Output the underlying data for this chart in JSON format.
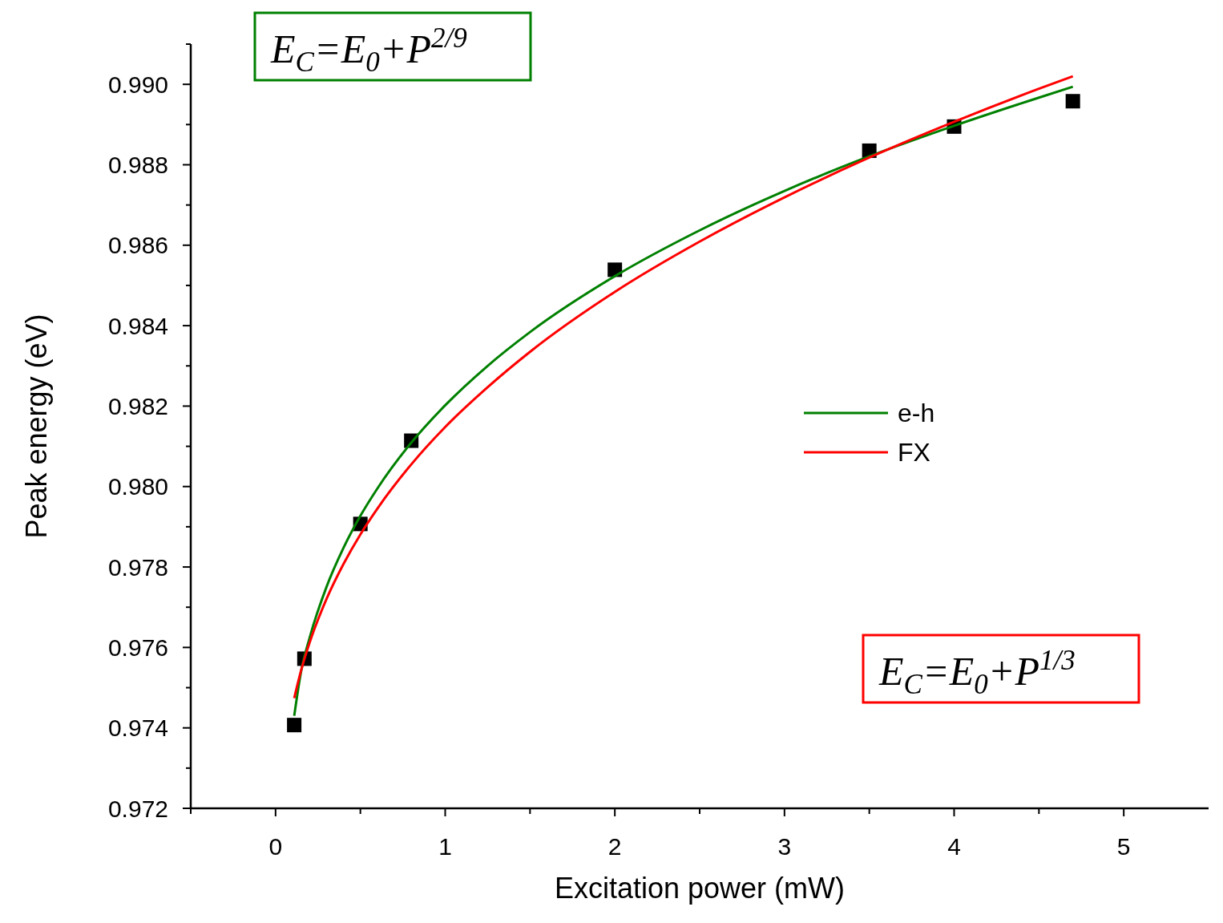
{
  "chart_data": {
    "type": "scatter",
    "xlabel": "Excitation power (mW)",
    "ylabel": "Peak energy (eV)",
    "xlim": [
      -0.5,
      5.5
    ],
    "ylim": [
      0.972,
      0.991
    ],
    "xticks": [
      {
        "value": -0.5,
        "label": null
      },
      0,
      {
        "value": 0.5,
        "label": null
      },
      1,
      {
        "value": 1.5,
        "label": null
      },
      2,
      {
        "value": 2.5,
        "label": null
      },
      3,
      {
        "value": 3.5,
        "label": null
      },
      4,
      {
        "value": 4.5,
        "label": null
      },
      5
    ],
    "yticks": [
      {
        "value": 0.972,
        "label": "0.972"
      },
      {
        "value": 0.973,
        "label": null
      },
      {
        "value": 0.974,
        "label": "0.974"
      },
      {
        "value": 0.975,
        "label": null
      },
      {
        "value": 0.976,
        "label": "0.976"
      },
      {
        "value": 0.977,
        "label": null
      },
      {
        "value": 0.978,
        "label": "0.978"
      },
      {
        "value": 0.979,
        "label": null
      },
      {
        "value": 0.98,
        "label": "0.980"
      },
      {
        "value": 0.981,
        "label": null
      },
      {
        "value": 0.982,
        "label": "0.982"
      },
      {
        "value": 0.983,
        "label": null
      },
      {
        "value": 0.984,
        "label": "0.984"
      },
      {
        "value": 0.985,
        "label": null
      },
      {
        "value": 0.986,
        "label": "0.986"
      },
      {
        "value": 0.987,
        "label": null
      },
      {
        "value": 0.988,
        "label": "0.988"
      },
      {
        "value": 0.989,
        "label": null
      },
      {
        "value": 0.99,
        "label": "0.990"
      },
      {
        "value": 0.991,
        "label": null
      }
    ],
    "grid": false,
    "legend": "right",
    "marker": "square",
    "series": [
      {
        "color": "#000000",
        "x": [
          0.11,
          0.17,
          0.5,
          0.8,
          2,
          3.5,
          4,
          4.7
        ],
        "values": [
          0.97407,
          0.97572,
          0.97907,
          0.98114,
          0.98539,
          0.98835,
          0.98895,
          0.98958
        ]
      },
      {
        "type": "line",
        "name": "e-h",
        "color": "#008000",
        "marker": "none",
        "x": [
          0.11,
          0.15,
          0.2,
          0.3,
          0.4,
          0.5,
          0.6,
          0.8,
          1,
          1.25,
          1.5,
          2,
          2.5,
          3,
          3.5,
          4,
          4.5,
          4.7
        ],
        "values": [
          0.9743,
          0.97539,
          0.97623,
          0.9775,
          0.97847,
          0.97927,
          0.97995,
          0.98109,
          0.98202,
          0.983,
          0.98384,
          0.98523,
          0.98637,
          0.98735,
          0.98821,
          0.98897,
          0.98967,
          0.98994
        ]
      },
      {
        "type": "line",
        "name": "FX",
        "color": "#ff0000",
        "marker": "none",
        "x": [
          0.11,
          0.15,
          0.2,
          0.3,
          0.4,
          0.5,
          0.6,
          0.8,
          1,
          1.25,
          1.5,
          2,
          2.5,
          3,
          3.5,
          4,
          4.5,
          4.7
        ],
        "values": [
          0.97474,
          0.97542,
          0.97611,
          0.9772,
          0.97807,
          0.97881,
          0.97945,
          0.98055,
          0.98148,
          0.98247,
          0.98335,
          0.98484,
          0.98609,
          0.98719,
          0.98818,
          0.98907,
          0.98989,
          0.9902
        ]
      }
    ],
    "annotations": [
      "E$_{C}$=E$_{0}$+P$^{2/9}$",
      "E$_{C}$=E$_{0}$+P$^{1/3}$"
    ]
  }
}
